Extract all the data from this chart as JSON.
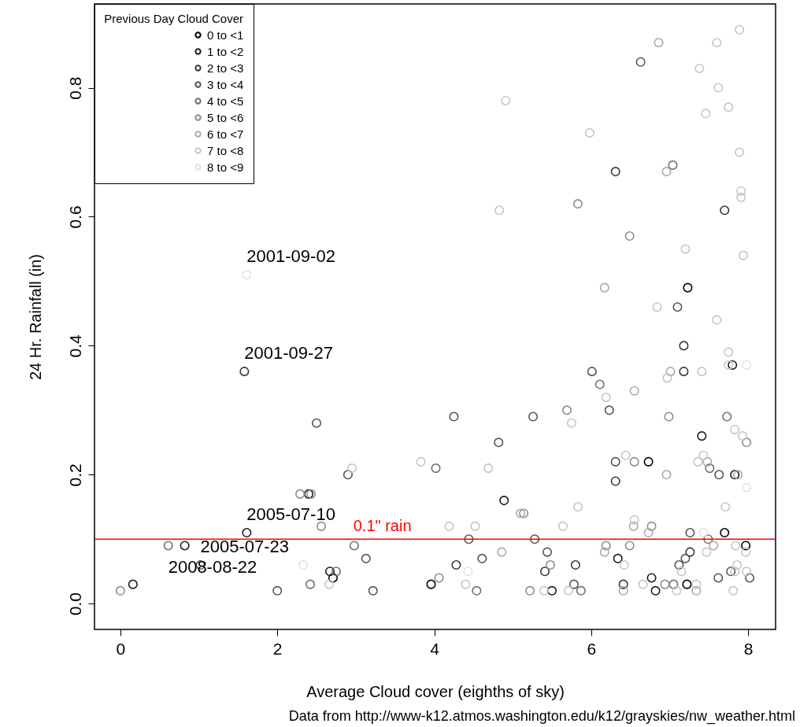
{
  "chart_data": {
    "type": "scatter",
    "xlabel": "Average Cloud cover (eighths of sky)",
    "ylabel": "24 Hr. Rainfall (in)",
    "legend_title": "Previous Day Cloud Cover",
    "legend": "top left",
    "marker": "circle",
    "grid": false,
    "xlim": [
      -0.33,
      8.35
    ],
    "ylim": [
      -0.04,
      0.93
    ],
    "xticks": [
      0,
      2,
      4,
      6,
      8
    ],
    "yticks": [
      {
        "value": 0,
        "label": "0.0"
      },
      0.2,
      0.4,
      0.6,
      0.8
    ],
    "series": [
      {
        "name": "0 to <1",
        "color": "#000000",
        "x": [
          2.71,
          3.96,
          6.73,
          7.23,
          7.7,
          7.97,
          7.22
        ],
        "values": [
          0.04,
          0.03,
          0.22,
          0.49,
          0.11,
          0.09,
          0.03
        ]
      },
      {
        "name": "1 to <2",
        "color": "#1c1c1c",
        "x": [
          0.16,
          0.82,
          1.61,
          2.4,
          2.67,
          4.89,
          5.5,
          7.8,
          7.41,
          7.83,
          6.34,
          6.77,
          6.82
        ],
        "values": [
          0.03,
          0.09,
          0.11,
          0.17,
          0.05,
          0.16,
          0.02,
          0.37,
          0.26,
          0.2,
          0.07,
          0.04,
          0.02
        ]
      },
      {
        "name": "2 to <3",
        "color": "#383838",
        "x": [
          1.58,
          4.28,
          5.41,
          5.8,
          6.31,
          7.7,
          7.18,
          7.18,
          6.31,
          7.26,
          6.41
        ],
        "values": [
          0.36,
          0.06,
          0.05,
          0.06,
          0.67,
          0.61,
          0.4,
          0.36,
          0.19,
          0.08,
          0.03
        ]
      },
      {
        "name": "3 to <4",
        "color": "#555555",
        "x": [
          1.02,
          2.5,
          2.9,
          2.0,
          3.13,
          3.22,
          4.25,
          5.26,
          4.82,
          4.44,
          5.28,
          5.44,
          4.61,
          5.78,
          6.63,
          7.1,
          6.01,
          6.23,
          6.31,
          7.63,
          7.26,
          7.2,
          7.12,
          7.78,
          8.02,
          7.62
        ],
        "values": [
          0.06,
          0.28,
          0.2,
          0.02,
          0.07,
          0.02,
          0.29,
          0.29,
          0.25,
          0.1,
          0.1,
          0.08,
          0.07,
          0.03,
          0.84,
          0.46,
          0.36,
          0.3,
          0.22,
          0.2,
          0.11,
          0.07,
          0.06,
          0.05,
          0.04,
          0.04
        ]
      },
      {
        "name": "4 to <5",
        "color": "#717171",
        "x": [
          0.61,
          2.98,
          2.42,
          2.75,
          4.02,
          4.54,
          7.04,
          6.11,
          7.73,
          7.51,
          7.49,
          7.05,
          5.87
        ],
        "values": [
          0.09,
          0.09,
          0.03,
          0.05,
          0.21,
          0.02,
          0.68,
          0.34,
          0.29,
          0.21,
          0.1,
          0.03,
          0.02
        ]
      },
      {
        "name": "5 to <6",
        "color": "#8d8d8d",
        "x": [
          0.0,
          2.29,
          2.43,
          2.56,
          4.06,
          5.14,
          5.69,
          5.48,
          5.22,
          5.83,
          6.49,
          6.99,
          6.55,
          7.98,
          6.77,
          6.19,
          6.49,
          6.94
        ],
        "values": [
          0.02,
          0.17,
          0.17,
          0.12,
          0.04,
          0.14,
          0.3,
          0.06,
          0.02,
          0.62,
          0.57,
          0.29,
          0.22,
          0.25,
          0.12,
          0.09,
          0.09,
          0.03
        ]
      },
      {
        "name": "6 to <7",
        "color": "#aaaaaa",
        "x": [
          5.1,
          4.86,
          6.86,
          6.96,
          6.17,
          7.01,
          6.55,
          7.48,
          7.87,
          6.96,
          6.54,
          6.73,
          6.17,
          7.56,
          6.41,
          7.34
        ],
        "values": [
          0.14,
          0.08,
          0.87,
          0.67,
          0.49,
          0.36,
          0.33,
          0.22,
          0.2,
          0.2,
          0.12,
          0.11,
          0.08,
          0.09,
          0.02,
          0.02
        ]
      },
      {
        "name": "7 to <8",
        "color": "#c6c6c6",
        "x": [
          2.95,
          2.66,
          3.83,
          4.69,
          5.75,
          5.83,
          4.19,
          4.52,
          5.64,
          4.4,
          5.4,
          5.71,
          4.91,
          4.83,
          7.89,
          7.6,
          7.38,
          7.62,
          7.75,
          7.46,
          5.98,
          7.89,
          7.91,
          7.91,
          7.2,
          7.94,
          6.84,
          7.6,
          7.75,
          7.75,
          6.97,
          7.41,
          6.19,
          7.83,
          7.93,
          6.44,
          7.43,
          7.36,
          7.71,
          6.55,
          7.47,
          7.84,
          7.97,
          6.42,
          7.15,
          7.86,
          7.83,
          7.98,
          6.66,
          7.34,
          7.09,
          7.81
        ],
        "values": [
          0.21,
          0.03,
          0.22,
          0.21,
          0.28,
          0.15,
          0.12,
          0.12,
          0.12,
          0.03,
          0.02,
          0.02,
          0.78,
          0.61,
          0.89,
          0.87,
          0.83,
          0.8,
          0.77,
          0.76,
          0.73,
          0.7,
          0.64,
          0.63,
          0.55,
          0.54,
          0.46,
          0.44,
          0.39,
          0.37,
          0.35,
          0.36,
          0.32,
          0.27,
          0.26,
          0.23,
          0.23,
          0.22,
          0.15,
          0.13,
          0.08,
          0.09,
          0.08,
          0.06,
          0.05,
          0.06,
          0.05,
          0.05,
          0.03,
          0.03,
          0.02,
          0.02
        ]
      },
      {
        "name": "8 to <9",
        "color": "#e2e2e2",
        "x": [
          1.61,
          2.33,
          4.43,
          7.98,
          7.98,
          7.43
        ],
        "values": [
          0.51,
          0.06,
          0.05,
          0.37,
          0.18,
          0.11
        ]
      }
    ],
    "ref_lines": [
      {
        "axis": "y",
        "value": 0.1,
        "label": "0.1\" rain",
        "color": "#ff0000"
      }
    ],
    "annotations": [
      {
        "text": "2001-09-02",
        "x": 1.61,
        "y": 0.51
      },
      {
        "text": "2001-09-27",
        "x": 1.58,
        "y": 0.36
      },
      {
        "text": "2005-07-10",
        "x": 1.61,
        "y": 0.11
      },
      {
        "text": "2005-07-23",
        "x": 1.02,
        "y": 0.06
      },
      {
        "text": "2008-08-22",
        "x": 0.61,
        "y": 0.09
      },
      "Data from http://www-k12.atmos.washington.edu/k12/grayskies/nw_weather.html"
    ]
  }
}
